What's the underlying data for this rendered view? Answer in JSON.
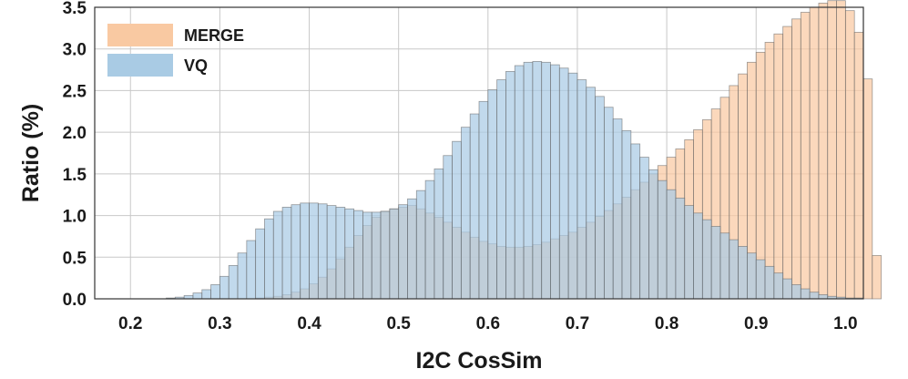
{
  "chart_data": {
    "type": "bar",
    "title": "",
    "xlabel": "I2C CosSim",
    "ylabel": "Ratio (%)",
    "xlim": [
      0.16,
      1.02
    ],
    "ylim": [
      0,
      3.5
    ],
    "x_ticks": [
      "0.2",
      "0.3",
      "0.4",
      "0.5",
      "0.6",
      "0.7",
      "0.8",
      "0.9",
      "1.0"
    ],
    "y_ticks": [
      "0.0",
      "0.5",
      "1.0",
      "1.5",
      "2.0",
      "2.5",
      "3.0",
      "3.5"
    ],
    "grid": true,
    "legend_position": "top-left",
    "bin_start": 0.2,
    "bin_width": 0.01,
    "series": [
      {
        "name": "MERGE",
        "color": "#f9c9a2",
        "values": [
          0,
          0,
          0,
          0,
          0,
          0,
          0,
          0,
          0,
          0,
          0,
          0,
          0,
          0,
          0.01,
          0.02,
          0.03,
          0.05,
          0.08,
          0.12,
          0.18,
          0.26,
          0.36,
          0.48,
          0.62,
          0.76,
          0.88,
          0.98,
          1.05,
          1.08,
          1.1,
          1.12,
          1.08,
          1.03,
          0.98,
          0.92,
          0.86,
          0.8,
          0.74,
          0.69,
          0.66,
          0.63,
          0.62,
          0.62,
          0.63,
          0.65,
          0.68,
          0.72,
          0.76,
          0.8,
          0.86,
          0.92,
          0.99,
          1.06,
          1.14,
          1.22,
          1.31,
          1.4,
          1.5,
          1.6,
          1.7,
          1.8,
          1.91,
          2.03,
          2.15,
          2.28,
          2.42,
          2.56,
          2.7,
          2.84,
          2.96,
          3.08,
          3.18,
          3.27,
          3.36,
          3.44,
          3.5,
          3.55,
          3.58,
          3.58,
          3.46,
          3.2,
          2.64,
          0.52,
          0
        ]
      },
      {
        "name": "VQ",
        "color": "#a9cbe4",
        "values": [
          0,
          0,
          0,
          0,
          0.01,
          0.02,
          0.04,
          0.07,
          0.11,
          0.17,
          0.27,
          0.4,
          0.55,
          0.7,
          0.84,
          0.96,
          1.05,
          1.1,
          1.13,
          1.15,
          1.15,
          1.14,
          1.12,
          1.1,
          1.08,
          1.06,
          1.04,
          1.04,
          1.05,
          1.08,
          1.13,
          1.2,
          1.3,
          1.42,
          1.56,
          1.72,
          1.89,
          2.06,
          2.22,
          2.37,
          2.51,
          2.63,
          2.73,
          2.8,
          2.84,
          2.85,
          2.84,
          2.81,
          2.77,
          2.71,
          2.63,
          2.54,
          2.43,
          2.3,
          2.16,
          2.02,
          1.86,
          1.7,
          1.55,
          1.42,
          1.31,
          1.21,
          1.12,
          1.03,
          0.95,
          0.87,
          0.79,
          0.71,
          0.63,
          0.55,
          0.47,
          0.39,
          0.31,
          0.24,
          0.17,
          0.12,
          0.08,
          0.05,
          0.03,
          0.02,
          0.01,
          0.01,
          0,
          0,
          0
        ]
      }
    ]
  }
}
